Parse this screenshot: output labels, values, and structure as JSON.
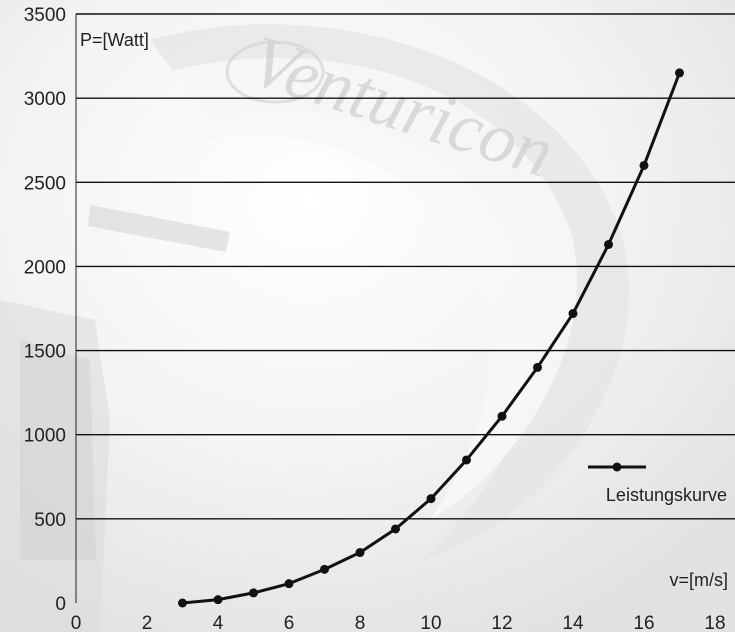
{
  "watermark": {
    "text": "Venturicon"
  },
  "chart_data": {
    "type": "line",
    "title": "",
    "ylabel": "P=[Watt]",
    "xlabel": "v=[m/s]",
    "xlim": [
      0,
      18
    ],
    "ylim": [
      0,
      3500
    ],
    "xticks": [
      0,
      2,
      4,
      6,
      8,
      10,
      12,
      14,
      16,
      18
    ],
    "yticks": [
      0,
      500,
      1000,
      1500,
      2000,
      2500,
      3000,
      3500
    ],
    "grid": "horizontal",
    "legend_position": "right",
    "series": [
      {
        "name": "Leistungskurve",
        "color": "#111111",
        "x": [
          3,
          4,
          5,
          6,
          7,
          8,
          9,
          10,
          11,
          12,
          13,
          14,
          15,
          16,
          17
        ],
        "y": [
          0,
          20,
          60,
          115,
          200,
          300,
          440,
          620,
          850,
          1110,
          1400,
          1720,
          2130,
          2600,
          3150
        ]
      }
    ]
  }
}
